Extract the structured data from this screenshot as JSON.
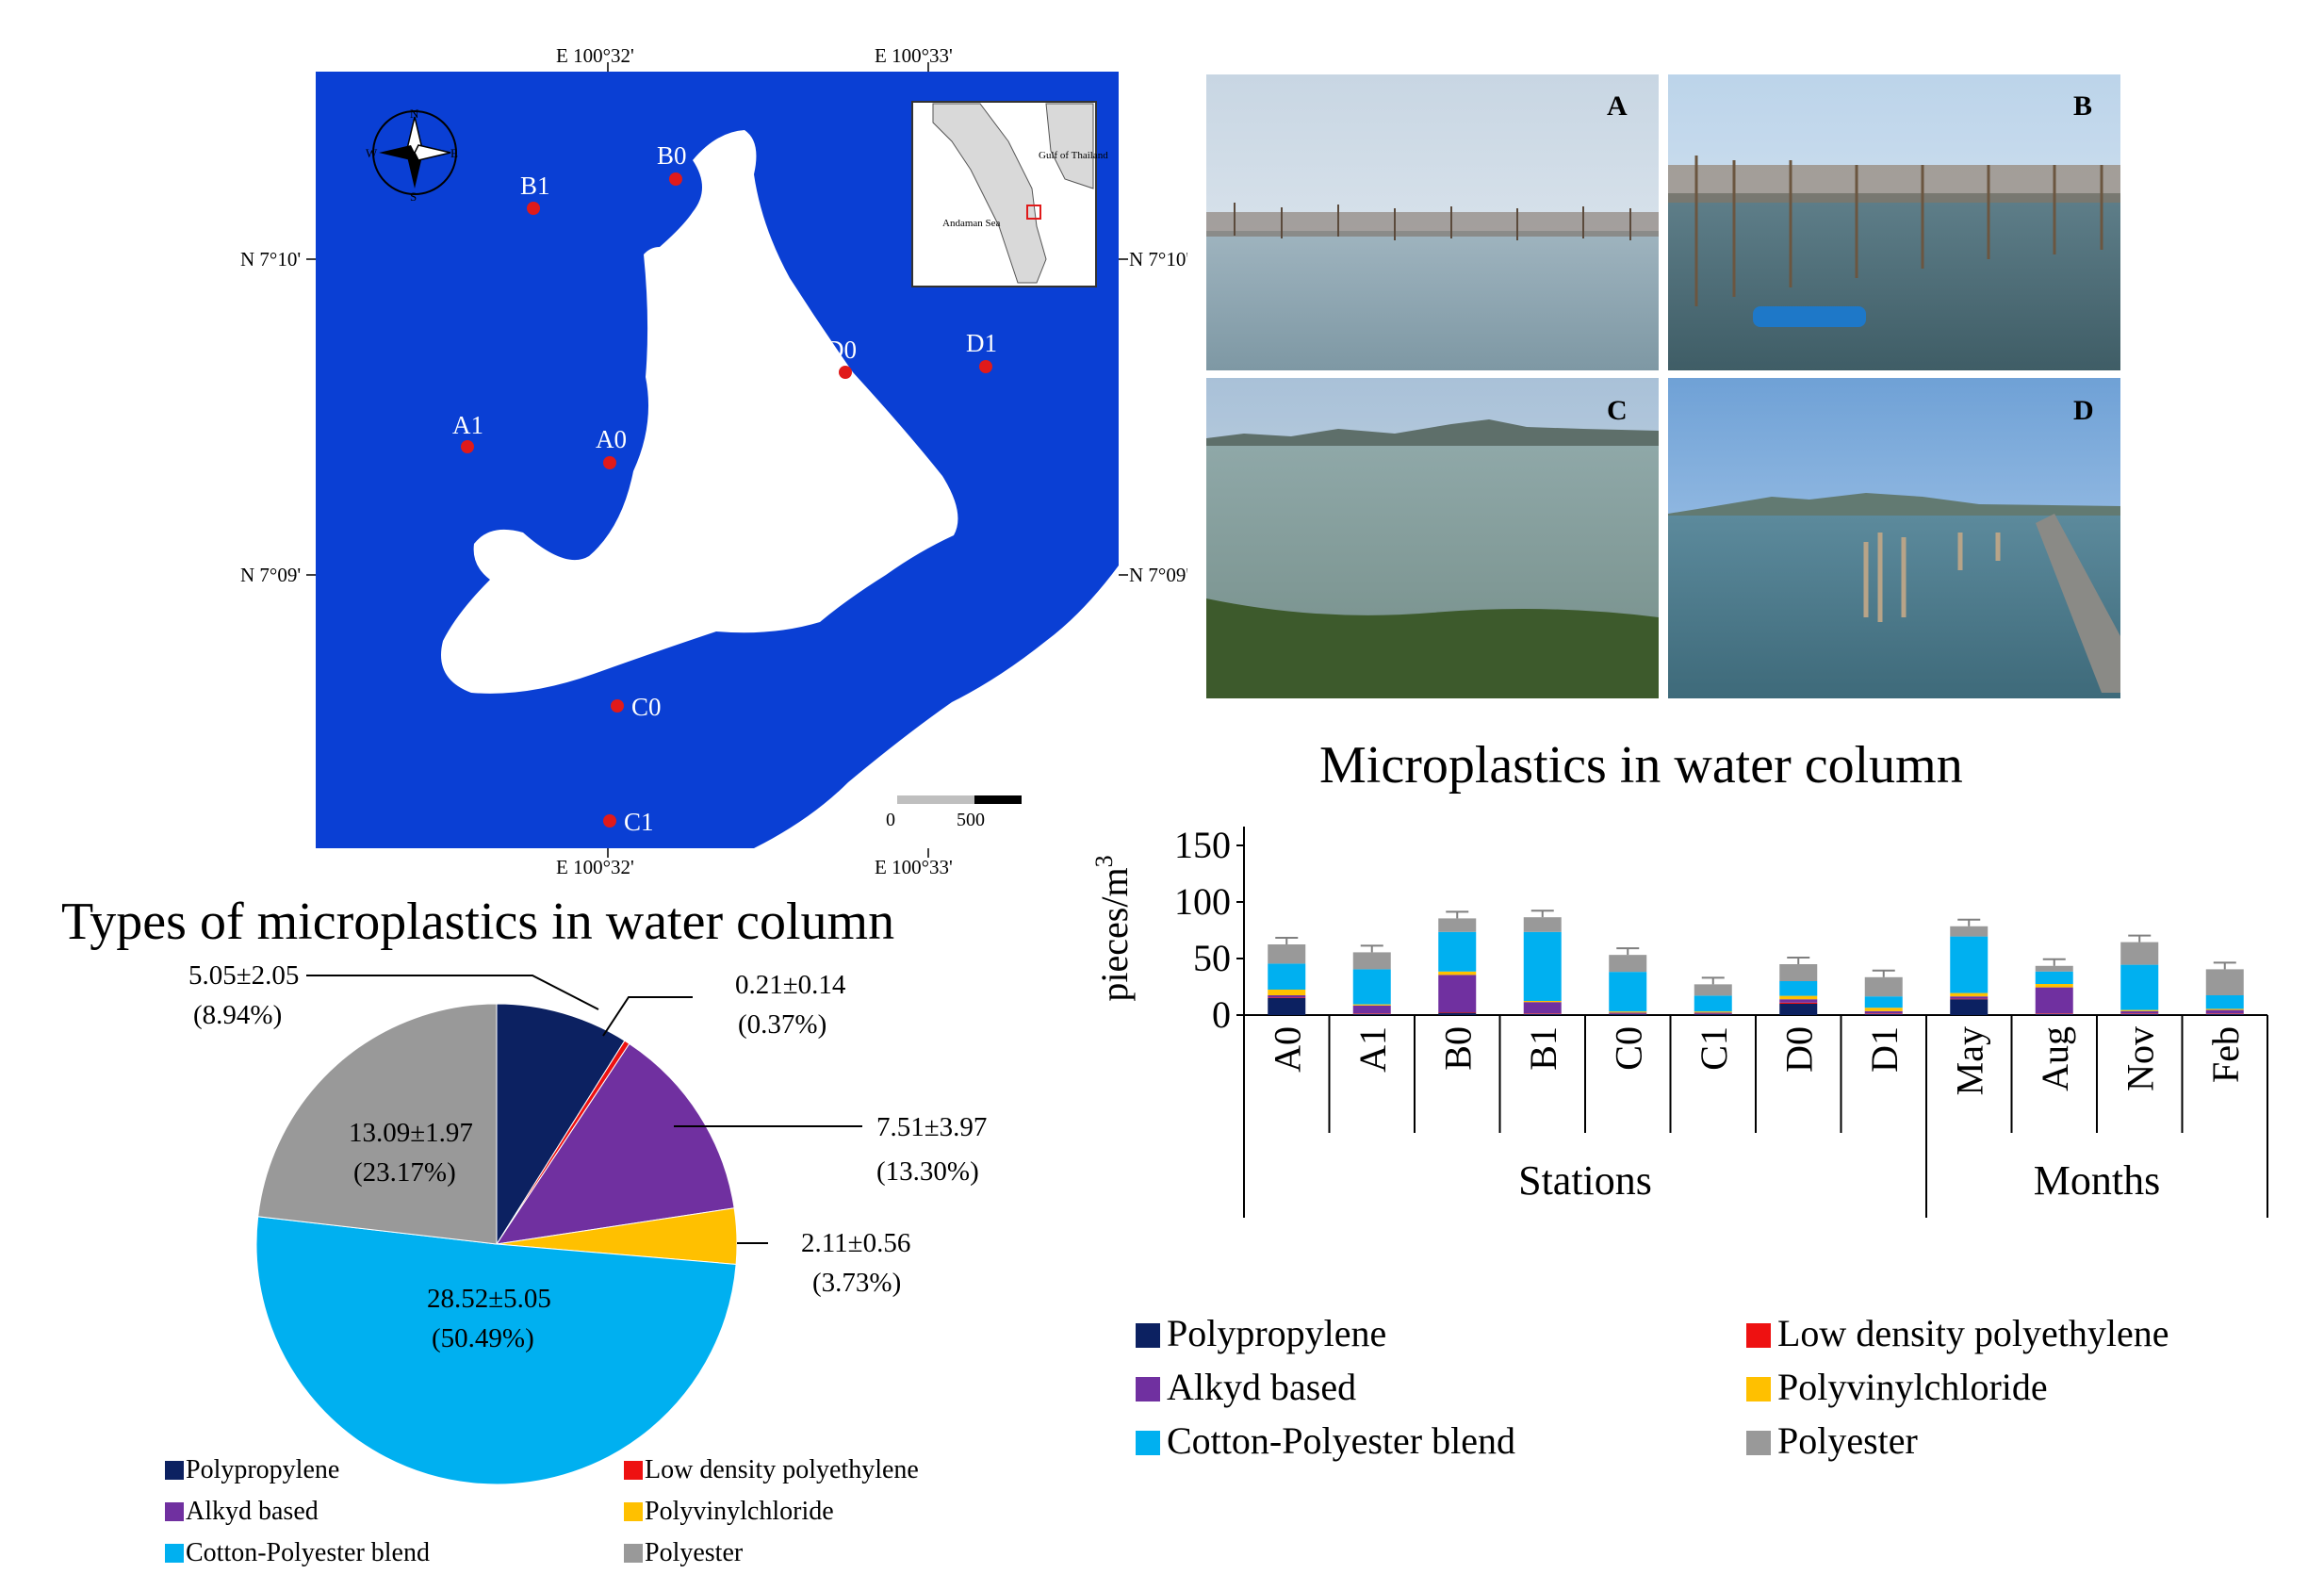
{
  "map": {
    "top_coords": [
      "E 100°32'",
      "E 100°33'"
    ],
    "bottom_coords": [
      "E 100°32'",
      "E 100°33'"
    ],
    "left_coords": [
      "N 7°10'",
      "N 7°09'"
    ],
    "right_coords": [
      "N 7°10'",
      "N 7°09'"
    ],
    "compass": [
      "N",
      "S",
      "E",
      "W"
    ],
    "stations": [
      "B1",
      "B0",
      "D0",
      "D1",
      "A1",
      "A0",
      "C0",
      "C1"
    ],
    "scale_labels": [
      "0",
      "500"
    ],
    "inset_labels": [
      "Gulf of Thailand",
      "Andaman Sea"
    ],
    "colors": {
      "sea": "#0a3fd4",
      "land": "#ffffff",
      "station": "#e01a1a"
    }
  },
  "photos": {
    "labels": [
      "A",
      "B",
      "C",
      "D"
    ]
  },
  "chart_data": [
    {
      "type": "pie",
      "title": "Types of microplastics in water column",
      "categories": [
        "Polypropylene",
        "Low density polyethylene",
        "Alkyd based",
        "Polyvinylchloride",
        "Cotton-Polyester blend",
        "Polyester"
      ],
      "values": [
        5.05,
        0.21,
        7.51,
        2.11,
        28.52,
        13.09
      ],
      "sd": [
        2.05,
        0.14,
        3.97,
        0.56,
        5.05,
        1.97
      ],
      "percent": [
        8.94,
        0.37,
        13.3,
        3.73,
        50.49,
        23.17
      ],
      "data_labels": [
        [
          "5.05±2.05",
          "(8.94%)"
        ],
        [
          "0.21±0.14",
          "(0.37%)"
        ],
        [
          "7.51±3.97",
          "(13.30%)"
        ],
        [
          "2.11±0.56",
          "(3.73%)"
        ],
        [
          "28.52±5.05",
          "(50.49%)"
        ],
        [
          "13.09±1.97",
          "(23.17%)"
        ]
      ],
      "colors": [
        "#0c2161",
        "#ee1111",
        "#7030a0",
        "#ffc000",
        "#00b0f0",
        "#999999"
      ],
      "legend": "bottom"
    },
    {
      "type": "bar",
      "stacked": true,
      "title": "Microplastics in water column",
      "ylabel": "pieces/m",
      "ylabel_sup": "3",
      "ylim": [
        0,
        150
      ],
      "yticks": [
        0,
        50,
        100,
        150
      ],
      "categories": [
        "A0",
        "A1",
        "B0",
        "B1",
        "C0",
        "C1",
        "D0",
        "D1",
        "May",
        "Aug",
        "Nov",
        "Feb"
      ],
      "groups": [
        {
          "name": "Stations",
          "count": 8
        },
        {
          "name": "Months",
          "count": 4
        }
      ],
      "series": [
        {
          "name": "Polypropylene",
          "color": "#0c2161",
          "values": [
            15,
            1,
            2,
            1,
            1,
            1,
            10,
            1,
            14,
            1,
            1,
            1
          ]
        },
        {
          "name": "Low density polyethylene",
          "color": "#ee1111",
          "values": [
            0.5,
            0.5,
            0.5,
            0.5,
            0.2,
            0.2,
            1,
            0.5,
            0.5,
            0.5,
            0.5,
            0.5
          ]
        },
        {
          "name": "Alkyd based",
          "color": "#7030a0",
          "values": [
            2,
            7,
            33,
            10,
            1,
            1,
            3,
            2,
            2,
            23,
            2,
            3
          ]
        },
        {
          "name": "Polyvinylchloride",
          "color": "#ffc000",
          "values": [
            5,
            1,
            3,
            1,
            1,
            1,
            3,
            3,
            3,
            3,
            1,
            1
          ]
        },
        {
          "name": "Cotton-Polyester blend",
          "color": "#00b0f0",
          "values": [
            23,
            31,
            35,
            61,
            35,
            14,
            13,
            10,
            50,
            11,
            40,
            12
          ]
        },
        {
          "name": "Polyester",
          "color": "#999999",
          "values": [
            17,
            15,
            12,
            13,
            15,
            10,
            15,
            17,
            9,
            5,
            20,
            23
          ]
        }
      ],
      "legend": "bottom"
    }
  ]
}
